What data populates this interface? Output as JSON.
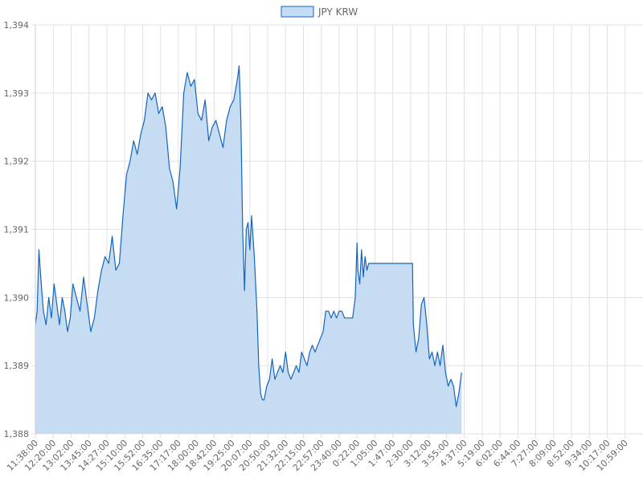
{
  "chart_data": {
    "type": "area",
    "title": "",
    "xlabel": "",
    "ylabel": "",
    "legend": {
      "position": "top",
      "entries": [
        "JPY KRW"
      ]
    },
    "grid": true,
    "ylim": [
      1388,
      1394
    ],
    "yticks": [
      1388,
      1389,
      1390,
      1391,
      1392,
      1393,
      1394
    ],
    "ytick_labels": [
      "1,388",
      "1,389",
      "1,390",
      "1,391",
      "1,392",
      "1,393",
      "1,394"
    ],
    "xtick_labels": [
      "11:38:00",
      "12:20:00",
      "13:02:00",
      "13:45:00",
      "14:27:00",
      "15:10:00",
      "15:52:00",
      "16:35:00",
      "17:17:00",
      "18:00:00",
      "18:42:00",
      "19:25:00",
      "20:07:00",
      "20:50:00",
      "21:32:00",
      "22:15:00",
      "22:57:00",
      "23:40:00",
      "0:22:00",
      "1:05:00",
      "1:47:00",
      "2:30:00",
      "3:12:00",
      "3:55:00",
      "4:37:00",
      "5:19:00",
      "6:02:00",
      "6:44:00",
      "7:27:00",
      "8:09:00",
      "8:52:00",
      "9:34:00",
      "10:17:00",
      "10:59:00"
    ],
    "colors": {
      "line": "#1565c0",
      "fill": "#c6dcf2",
      "grid": "#e0e0e0",
      "text": "#666666"
    },
    "series": [
      {
        "name": "JPY KRW",
        "points": [
          [
            0,
            1389.6
          ],
          [
            0.1,
            1389.8
          ],
          [
            0.2,
            1390.7
          ],
          [
            0.3,
            1390.3
          ],
          [
            0.45,
            1389.8
          ],
          [
            0.6,
            1389.6
          ],
          [
            0.75,
            1390.0
          ],
          [
            0.9,
            1389.7
          ],
          [
            1.05,
            1390.2
          ],
          [
            1.2,
            1389.9
          ],
          [
            1.35,
            1389.6
          ],
          [
            1.5,
            1390.0
          ],
          [
            1.65,
            1389.8
          ],
          [
            1.8,
            1389.5
          ],
          [
            1.95,
            1389.7
          ],
          [
            2.1,
            1390.2
          ],
          [
            2.3,
            1390.0
          ],
          [
            2.5,
            1389.8
          ],
          [
            2.7,
            1390.3
          ],
          [
            2.9,
            1389.9
          ],
          [
            3.1,
            1389.5
          ],
          [
            3.3,
            1389.7
          ],
          [
            3.5,
            1390.1
          ],
          [
            3.7,
            1390.4
          ],
          [
            3.9,
            1390.6
          ],
          [
            4.1,
            1390.5
          ],
          [
            4.3,
            1390.9
          ],
          [
            4.5,
            1390.4
          ],
          [
            4.7,
            1390.5
          ],
          [
            4.9,
            1391.2
          ],
          [
            5.1,
            1391.8
          ],
          [
            5.3,
            1392.0
          ],
          [
            5.5,
            1392.3
          ],
          [
            5.7,
            1392.1
          ],
          [
            5.9,
            1392.4
          ],
          [
            6.1,
            1392.6
          ],
          [
            6.3,
            1393.0
          ],
          [
            6.5,
            1392.9
          ],
          [
            6.7,
            1393.0
          ],
          [
            6.9,
            1392.7
          ],
          [
            7.1,
            1392.8
          ],
          [
            7.3,
            1392.5
          ],
          [
            7.5,
            1391.9
          ],
          [
            7.7,
            1391.7
          ],
          [
            7.9,
            1391.3
          ],
          [
            8.1,
            1391.9
          ],
          [
            8.3,
            1393.0
          ],
          [
            8.5,
            1393.3
          ],
          [
            8.7,
            1393.1
          ],
          [
            8.9,
            1393.2
          ],
          [
            9.1,
            1392.7
          ],
          [
            9.3,
            1392.6
          ],
          [
            9.5,
            1392.9
          ],
          [
            9.7,
            1392.3
          ],
          [
            9.9,
            1392.5
          ],
          [
            10.1,
            1392.6
          ],
          [
            10.3,
            1392.4
          ],
          [
            10.5,
            1392.2
          ],
          [
            10.7,
            1392.6
          ],
          [
            10.9,
            1392.8
          ],
          [
            11.1,
            1392.9
          ],
          [
            11.3,
            1393.2
          ],
          [
            11.4,
            1393.4
          ],
          [
            11.5,
            1392.6
          ],
          [
            11.6,
            1391.0
          ],
          [
            11.7,
            1390.1
          ],
          [
            11.8,
            1391.0
          ],
          [
            11.9,
            1391.1
          ],
          [
            12.0,
            1390.7
          ],
          [
            12.1,
            1391.2
          ],
          [
            12.25,
            1390.6
          ],
          [
            12.4,
            1389.8
          ],
          [
            12.5,
            1389.0
          ],
          [
            12.6,
            1388.6
          ],
          [
            12.7,
            1388.5
          ],
          [
            12.8,
            1388.5
          ],
          [
            12.95,
            1388.7
          ],
          [
            13.1,
            1388.8
          ],
          [
            13.25,
            1389.1
          ],
          [
            13.4,
            1388.8
          ],
          [
            13.55,
            1388.9
          ],
          [
            13.7,
            1389.0
          ],
          [
            13.85,
            1388.9
          ],
          [
            14.0,
            1389.2
          ],
          [
            14.15,
            1388.9
          ],
          [
            14.3,
            1388.8
          ],
          [
            14.45,
            1388.9
          ],
          [
            14.6,
            1389.0
          ],
          [
            14.75,
            1388.9
          ],
          [
            14.9,
            1389.2
          ],
          [
            15.05,
            1389.1
          ],
          [
            15.2,
            1389.0
          ],
          [
            15.35,
            1389.2
          ],
          [
            15.5,
            1389.3
          ],
          [
            15.65,
            1389.2
          ],
          [
            15.8,
            1389.3
          ],
          [
            15.95,
            1389.4
          ],
          [
            16.1,
            1389.5
          ],
          [
            16.25,
            1389.8
          ],
          [
            16.4,
            1389.8
          ],
          [
            16.55,
            1389.7
          ],
          [
            16.7,
            1389.8
          ],
          [
            16.85,
            1389.7
          ],
          [
            17.0,
            1389.8
          ],
          [
            17.15,
            1389.8
          ],
          [
            17.3,
            1389.7
          ],
          [
            17.45,
            1389.7
          ],
          [
            17.6,
            1389.7
          ],
          [
            17.75,
            1389.7
          ],
          [
            17.9,
            1390.0
          ],
          [
            18.0,
            1390.8
          ],
          [
            18.05,
            1390.4
          ],
          [
            18.15,
            1390.2
          ],
          [
            18.25,
            1390.7
          ],
          [
            18.35,
            1390.3
          ],
          [
            18.45,
            1390.6
          ],
          [
            18.55,
            1390.4
          ],
          [
            18.65,
            1390.5
          ],
          [
            18.8,
            1390.5
          ],
          [
            19.0,
            1390.5
          ],
          [
            19.5,
            1390.5
          ],
          [
            20.0,
            1390.5
          ],
          [
            20.5,
            1390.5
          ],
          [
            21.0,
            1390.5
          ],
          [
            21.1,
            1390.5
          ],
          [
            21.15,
            1389.6
          ],
          [
            21.3,
            1389.2
          ],
          [
            21.45,
            1389.4
          ],
          [
            21.6,
            1389.9
          ],
          [
            21.75,
            1390.0
          ],
          [
            21.9,
            1389.6
          ],
          [
            22.05,
            1389.1
          ],
          [
            22.2,
            1389.2
          ],
          [
            22.35,
            1389.0
          ],
          [
            22.5,
            1389.2
          ],
          [
            22.65,
            1389.0
          ],
          [
            22.8,
            1389.3
          ],
          [
            22.95,
            1388.9
          ],
          [
            23.1,
            1388.7
          ],
          [
            23.25,
            1388.8
          ],
          [
            23.4,
            1388.7
          ],
          [
            23.55,
            1388.4
          ],
          [
            23.7,
            1388.6
          ],
          [
            23.85,
            1388.9
          ]
        ]
      }
    ]
  }
}
